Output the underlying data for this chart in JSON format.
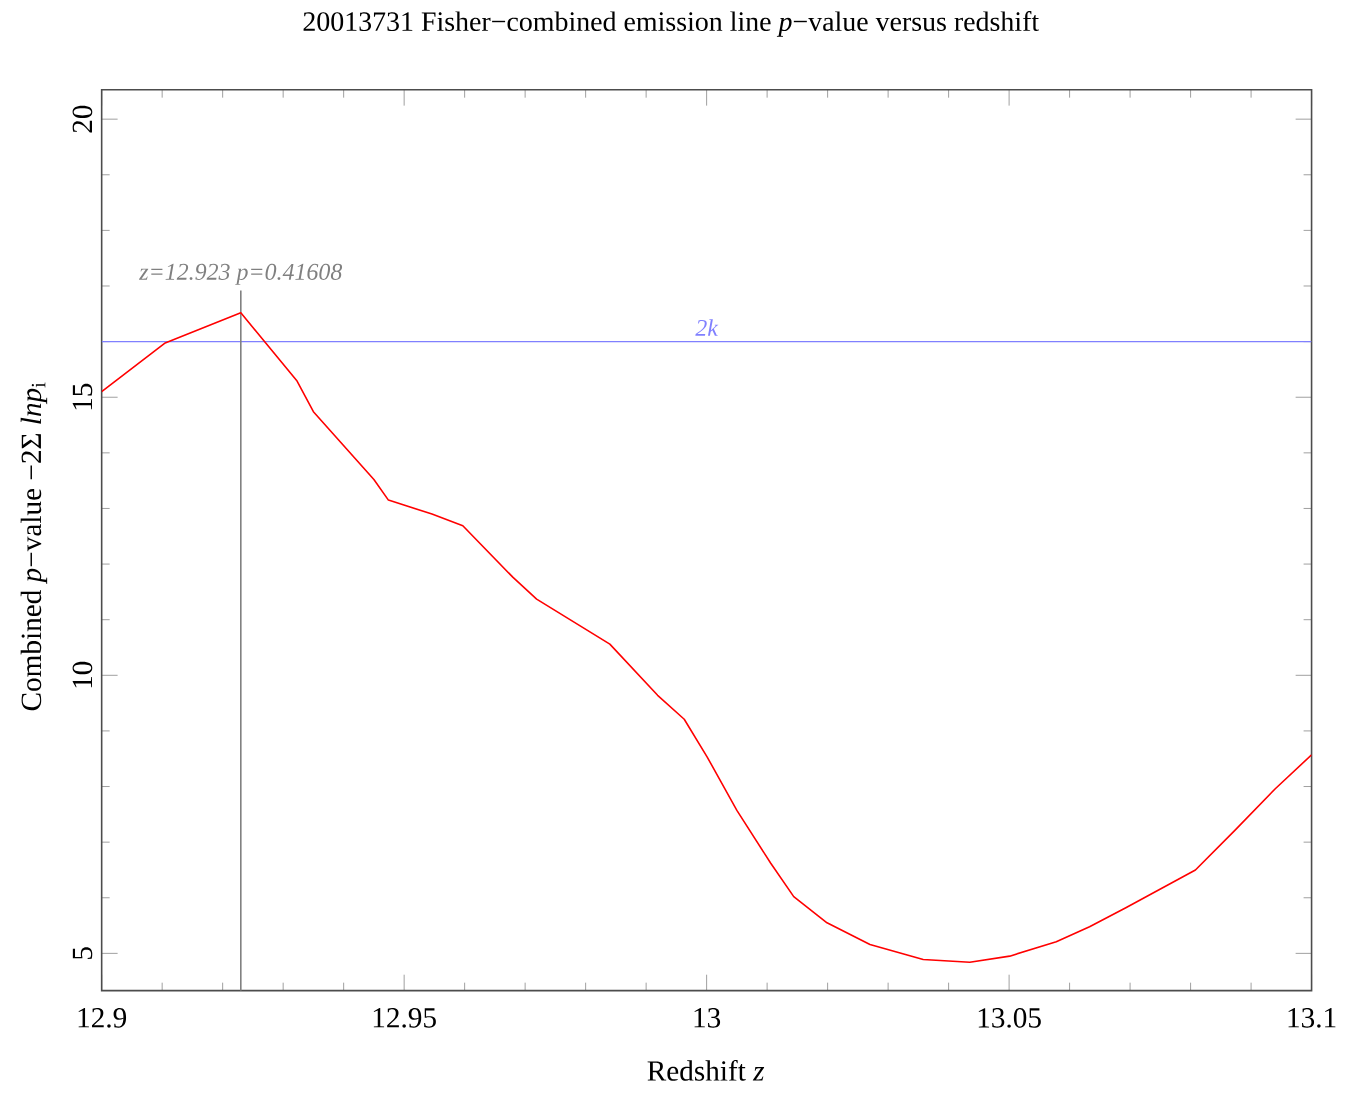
{
  "chart_data": {
    "type": "line",
    "title": "20013731 Fisher−combined emission line *p*−value versus redshift",
    "xlabel": "Redshift *z*",
    "ylabel": "Combined *p*−value  −2Σ *lnp*$_{i}$",
    "x": [
      12.9,
      12.9104,
      12.923,
      12.9323,
      12.935,
      12.945,
      12.9474,
      12.9546,
      12.9597,
      12.968,
      12.9719,
      12.984,
      12.9919,
      12.9963,
      13.0001,
      13.005,
      13.0106,
      13.0144,
      13.0199,
      13.027,
      13.0358,
      13.0435,
      13.0501,
      13.0578,
      13.0633,
      13.0693,
      13.0808,
      13.0874,
      13.094,
      13.1
    ],
    "series": [
      {
        "color": "#ff0000",
        "values": [
          15.1,
          15.97,
          16.52,
          15.29,
          14.74,
          13.52,
          13.15,
          12.9,
          12.69,
          11.76,
          11.37,
          10.56,
          9.64,
          9.21,
          8.53,
          7.57,
          6.62,
          6.02,
          5.55,
          5.16,
          4.89,
          4.84,
          4.95,
          5.21,
          5.48,
          5.82,
          6.5,
          7.22,
          7.96,
          8.57
        ]
      }
    ],
    "xlim": [
      12.9,
      13.1
    ],
    "ylim": [
      4.33,
      20.53
    ],
    "xticks": [
      12.9,
      12.95,
      13,
      13.05,
      13.1
    ],
    "yticks": [
      5,
      10,
      15,
      20
    ],
    "ref_lines": [
      {
        "axis": "y",
        "value": 16,
        "label": "2k",
        "color": "#8080ff"
      },
      {
        "axis": "x",
        "value": 12.923,
        "label": "z=12.923 p=0.41608",
        "color": "#808080"
      }
    ],
    "grid": false,
    "marker": "none",
    "line_style": "solid"
  }
}
